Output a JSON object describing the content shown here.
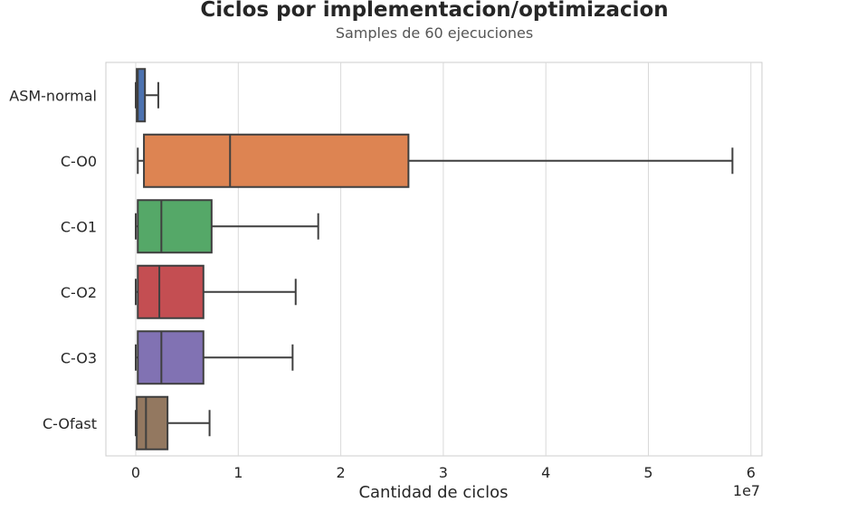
{
  "chart_data": {
    "type": "box",
    "orientation": "horizontal",
    "title": "Ciclos por implementacion/optimizacion",
    "subtitle": "Samples de 60 ejecuciones",
    "xlabel": "Cantidad de ciclos",
    "ylabel": "",
    "x_scale_label": "1e7",
    "xlim": [
      -0.28,
      6.1
    ],
    "x_ticks": [
      0,
      1,
      2,
      3,
      4,
      5,
      6
    ],
    "grid": "vertical",
    "categories": [
      "ASM-normal",
      "C-O0",
      "C-O1",
      "C-O2",
      "C-O3",
      "C-Ofast"
    ],
    "series": [
      {
        "name": "ASM-normal",
        "whisker_low": 0.0,
        "q1": 0.01,
        "median": 0.02,
        "q3": 0.09,
        "whisker_high": 0.22,
        "color": "#4c72b0"
      },
      {
        "name": "C-O0",
        "whisker_low": 0.02,
        "q1": 0.08,
        "median": 0.92,
        "q3": 2.66,
        "whisker_high": 5.82,
        "color": "#dd8452"
      },
      {
        "name": "C-O1",
        "whisker_low": 0.0,
        "q1": 0.02,
        "median": 0.25,
        "q3": 0.74,
        "whisker_high": 1.78,
        "color": "#55a868"
      },
      {
        "name": "C-O2",
        "whisker_low": 0.0,
        "q1": 0.02,
        "median": 0.23,
        "q3": 0.66,
        "whisker_high": 1.56,
        "color": "#c44e52"
      },
      {
        "name": "C-O3",
        "whisker_low": 0.0,
        "q1": 0.02,
        "median": 0.25,
        "q3": 0.66,
        "whisker_high": 1.53,
        "color": "#8172b3"
      },
      {
        "name": "C-Ofast",
        "whisker_low": 0.0,
        "q1": 0.01,
        "median": 0.1,
        "q3": 0.31,
        "whisker_high": 0.72,
        "color": "#937860"
      }
    ]
  }
}
